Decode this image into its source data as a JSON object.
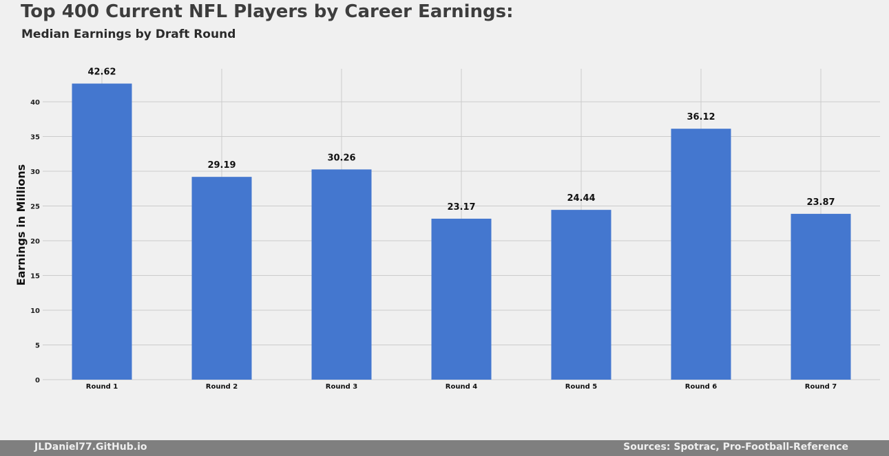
{
  "title": "Top 400 Current NFL Players by Career Earnings:",
  "subtitle": "Median Earnings by Draft Round",
  "footer": {
    "left": "JLDaniel77.GitHub.io",
    "right": "Sources: Spotrac, Pro-Football-Reference"
  },
  "colors": {
    "bar": "#4477cf",
    "background": "#f0f0f0",
    "grid": "#cbcbcb",
    "footer_bg": "#7f7f7f"
  },
  "chart_data": {
    "type": "bar",
    "categories": [
      "Round 1",
      "Round 2",
      "Round 3",
      "Round 4",
      "Round 5",
      "Round 6",
      "Round 7"
    ],
    "values": [
      42.62,
      29.19,
      30.26,
      23.17,
      24.44,
      36.12,
      23.87
    ],
    "data_labels": [
      "42.62",
      "29.19",
      "30.26",
      "23.17",
      "24.44",
      "36.12",
      "23.87"
    ],
    "title": "Top 400 Current NFL Players by Career Earnings:",
    "subtitle": "Median Earnings by Draft Round",
    "xlabel": "",
    "ylabel": "Earnings in Millions",
    "ylim": [
      0,
      44.75
    ],
    "yticks": [
      0,
      5,
      10,
      15,
      20,
      25,
      30,
      35,
      40
    ],
    "grid": true
  }
}
